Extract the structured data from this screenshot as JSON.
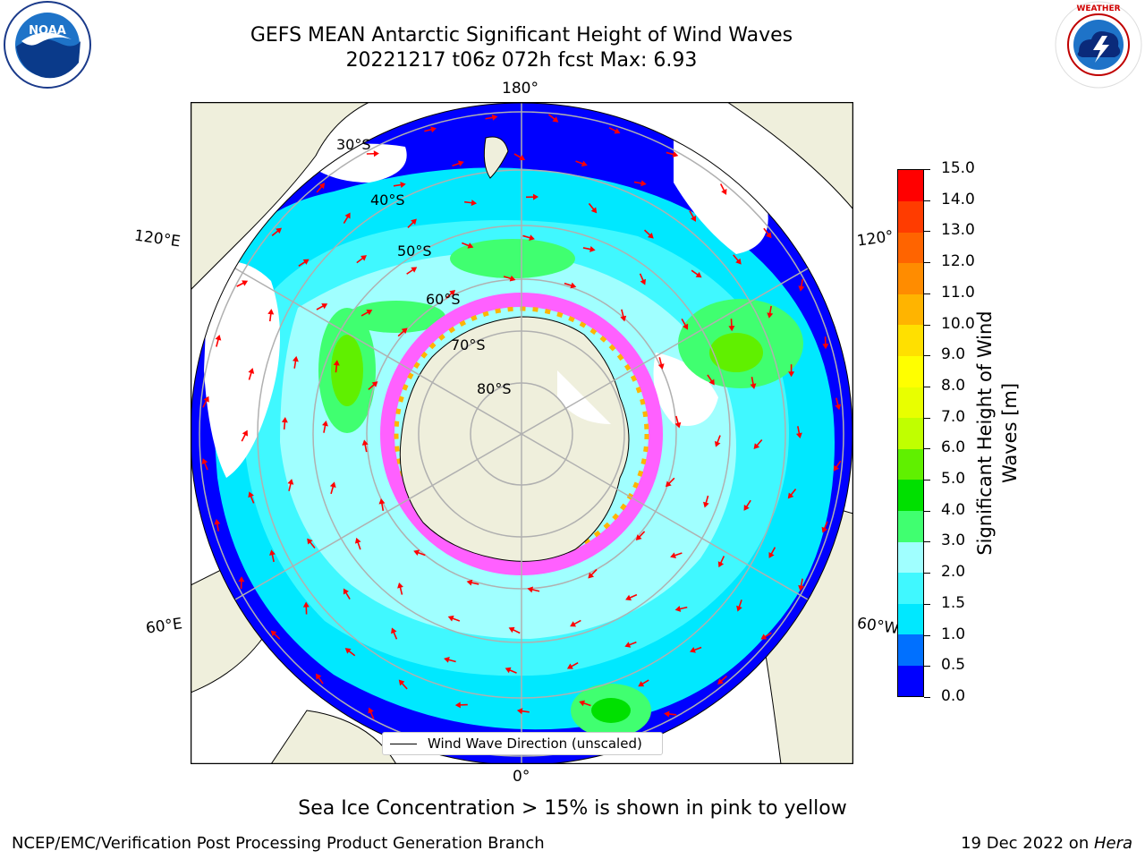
{
  "title": {
    "line1": "GEFS MEAN Antarctic Significant Height of Wind Waves",
    "line2": "20221217 t06z 072h fcst   Max: 6.93"
  },
  "logos": {
    "left": "NOAA",
    "right": "NATIONAL WEATHER SERVICE"
  },
  "map": {
    "longitude_labels": [
      "180°",
      "120°E",
      "120°",
      "60°E",
      "60°W",
      "0°"
    ],
    "latitude_labels": [
      "30°S",
      "40°S",
      "50°S",
      "60°S",
      "70°S",
      "80°S"
    ],
    "legend": "Wind Wave Direction (unscaled)",
    "colors": {
      "land": "#efefdc",
      "ocean_blank": "#ffffff",
      "arrow": "#ff0000",
      "grid": "#b0b0b0"
    }
  },
  "colorbar": {
    "title_line1": "Significant Height of Wind",
    "title_line2": "Waves [m]",
    "tick_labels": [
      "15.0",
      "14.0",
      "13.0",
      "12.0",
      "11.0",
      "10.0",
      "9.0",
      "8.0",
      "7.0",
      "6.0",
      "5.0",
      "4.0",
      "3.0",
      "2.0",
      "1.5",
      "1.0",
      "0.5",
      "0.0"
    ],
    "colors": [
      "#0000ff",
      "#0070ff",
      "#00e8ff",
      "#40f8ff",
      "#a0ffff",
      "#40ff70",
      "#00e000",
      "#60f000",
      "#c0ff00",
      "#e8ff00",
      "#ffff00",
      "#ffe000",
      "#ffb400",
      "#ff8c00",
      "#ff6400",
      "#ff3c00",
      "#ff0000"
    ]
  },
  "footer": {
    "note": "Sea Ice Concentration > 15% is shown in pink to yellow",
    "left": "NCEP/EMC/Verification Post Processing Product Generation Branch",
    "right_date": "19 Dec 2022 on ",
    "right_host": "Hera"
  }
}
